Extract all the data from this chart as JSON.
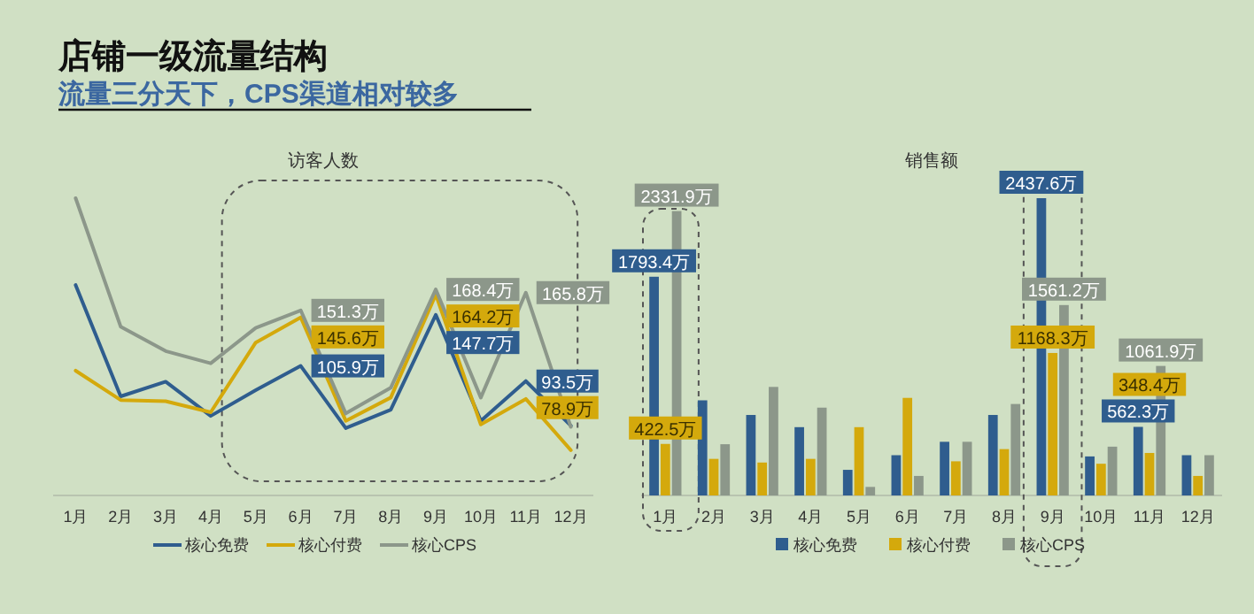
{
  "chart_data": [
    {
      "type": "line",
      "title": "访客人数",
      "annotations": [
        "店铺一级流量结构",
        "流量三分天下，CPS渠道相对较多"
      ],
      "categories": [
        "1月",
        "2月",
        "3月",
        "4月",
        "5月",
        "6月",
        "7月",
        "8月",
        "9月",
        "10月",
        "11月",
        "12月"
      ],
      "legend": "bottom",
      "marker": "none",
      "line_style": "solid",
      "series": [
        {
          "name": "核心免费",
          "color": "#2f5d8e",
          "values": [
            172,
            81,
            93,
            65,
            86,
            105.9,
            55,
            70,
            147.7,
            61,
            93.5,
            57
          ],
          "value_labels": [
            null,
            null,
            null,
            null,
            null,
            "105.9万",
            null,
            null,
            "147.7万",
            null,
            "93.5万",
            null
          ]
        },
        {
          "name": "核心付费",
          "color": "#d4a90c",
          "values": [
            102,
            78,
            77,
            68,
            125,
            145.6,
            61,
            80,
            164.2,
            58,
            78.9,
            37
          ],
          "value_labels": [
            null,
            null,
            null,
            null,
            null,
            "145.6万",
            null,
            null,
            "164.2万",
            null,
            "78.9万",
            null
          ]
        },
        {
          "name": "核心CPS",
          "color": "#8c978a",
          "values": [
            243,
            138,
            118,
            108,
            137,
            151.3,
            67,
            88,
            168.4,
            80,
            165.8,
            56
          ],
          "value_labels": [
            null,
            null,
            null,
            null,
            null,
            "151.3万",
            null,
            null,
            "168.4万",
            null,
            "165.8万",
            null
          ]
        }
      ]
    },
    {
      "type": "bar",
      "title": "销售额",
      "categories": [
        "1月",
        "2月",
        "3月",
        "4月",
        "5月",
        "6月",
        "7月",
        "8月",
        "9月",
        "10月",
        "11月",
        "12月"
      ],
      "legend": "bottom",
      "series": [
        {
          "name": "核心免费",
          "color": "#2f5d8e",
          "values": [
            1793.4,
            780,
            660,
            560,
            210,
            330,
            440,
            660,
            2437.6,
            320,
            562.3,
            330
          ],
          "value_labels": [
            "1793.4万",
            null,
            null,
            null,
            null,
            null,
            null,
            null,
            "2437.6万",
            null,
            "562.3万",
            null
          ]
        },
        {
          "name": "核心付费",
          "color": "#d4a90c",
          "values": [
            422.5,
            300,
            270,
            300,
            560,
            800,
            280,
            380,
            1168.3,
            260,
            348.4,
            160
          ],
          "value_labels": [
            "422.5万",
            null,
            null,
            null,
            null,
            null,
            null,
            null,
            "1168.3万",
            null,
            "348.4万",
            null
          ]
        },
        {
          "name": "核心CPS",
          "color": "#8c978a",
          "values": [
            2331.9,
            420,
            890,
            720,
            70,
            160,
            440,
            750,
            1561.2,
            400,
            1061.9,
            330
          ],
          "value_labels": [
            "2331.9万",
            null,
            null,
            null,
            null,
            null,
            null,
            null,
            "1561.2万",
            null,
            "1061.9万",
            null
          ]
        }
      ]
    }
  ]
}
